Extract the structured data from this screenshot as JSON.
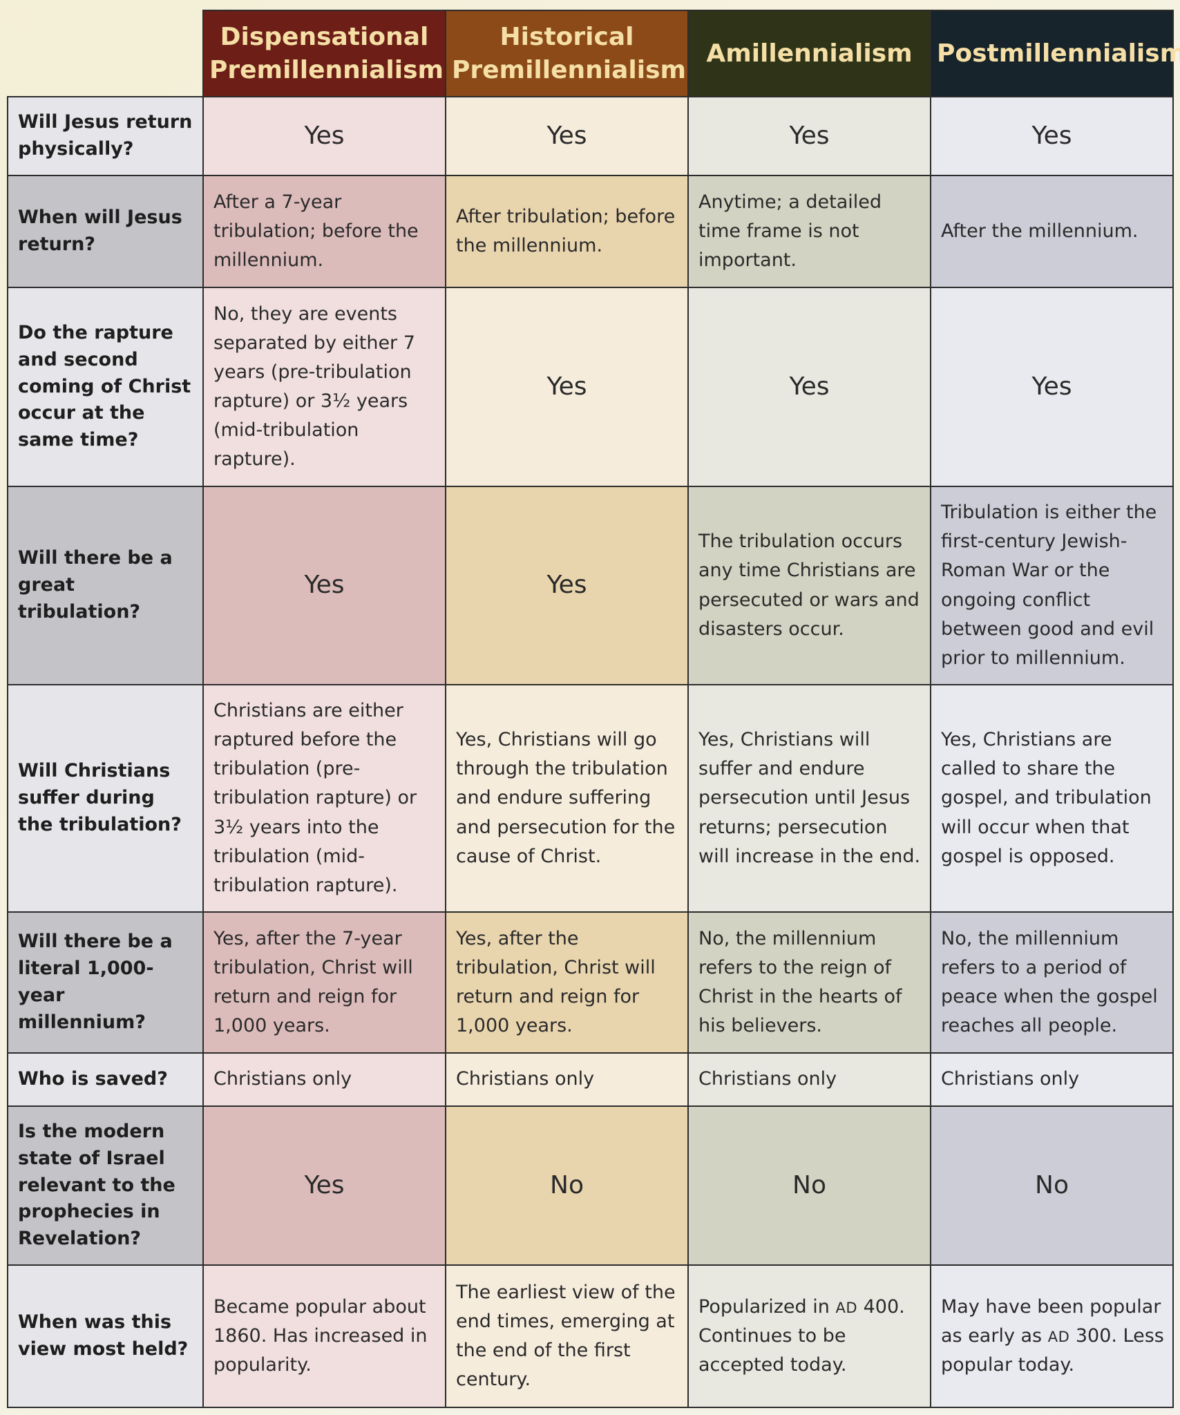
{
  "columns": [
    "Dispensational Premillennialism",
    "Historical Premillennialism",
    "Amillennialism",
    "Postmillennialism"
  ],
  "rows": [
    {
      "question": "Will Jesus return physically?",
      "answers": [
        "Yes",
        "Yes",
        "Yes",
        "Yes"
      ]
    },
    {
      "question": "When will Jesus return?",
      "answers": [
        "After a 7-year tribulation; before the millennium.",
        "After tribulation; before the millennium.",
        "Anytime; a detailed time frame is not important.",
        "After the millennium."
      ]
    },
    {
      "question": "Do the rapture and second coming of Christ occur at the same time?",
      "answers": [
        "No, they are events separated by either 7 years (pre-tribulation rapture) or 3½ years (mid-tribulation rapture).",
        "Yes",
        "Yes",
        "Yes"
      ]
    },
    {
      "question": "Will there be a great tribulation?",
      "answers": [
        "Yes",
        "Yes",
        "The tribulation occurs any time Christians are persecuted or wars and disasters occur.",
        "Tribulation is either the first-century Jewish-Roman War or the ongoing conflict between good and evil prior to millennium."
      ]
    },
    {
      "question": "Will Christians suffer during the tribulation?",
      "answers": [
        "Christians are either raptured before the tribulation (pre-tribulation rapture) or 3½ years into the tribulation (mid-tribulation rapture).",
        "Yes, Christians will go through the tribulation and endure suffering and persecution for the cause of Christ.",
        "Yes, Christians will suffer and endure persecution until Jesus returns; persecution will increase in the end.",
        "Yes, Christians are called to share the gospel, and tribulation will occur when that gospel is opposed."
      ]
    },
    {
      "question": "Will there be a literal 1,000-year millennium?",
      "answers": [
        "Yes, after the 7-year tribulation, Christ will return and reign for 1,000 years.",
        "Yes, after the tribulation, Christ will return and reign for 1,000 years.",
        "No, the millennium refers to the reign of Christ in the hearts of his believers.",
        "No, the millennium refers to a period of peace when the gospel reaches all people."
      ]
    },
    {
      "question": "Who is saved?",
      "answers": [
        "Christians only",
        "Christians only",
        "Christians only",
        "Christians only"
      ]
    },
    {
      "question": "Is the modern state of Israel relevant to the prophecies in Revelation?",
      "answers": [
        "Yes",
        "No",
        "No",
        "No"
      ]
    },
    {
      "question": "When was this view most held?",
      "answers": [
        "Became popular about 1860. Has increased in popularity.",
        "The earliest view of the end times, emerging at the end of the first century.",
        "Popularized in AD 400. Continues to be accepted today.",
        "May have been popular as early as AD 300. Less popular today."
      ]
    }
  ],
  "colors": {
    "header": [
      "#6d1f17",
      "#8b4a17",
      "#2f3418",
      "#17242b"
    ],
    "header_text": "#f5dfa6"
  }
}
